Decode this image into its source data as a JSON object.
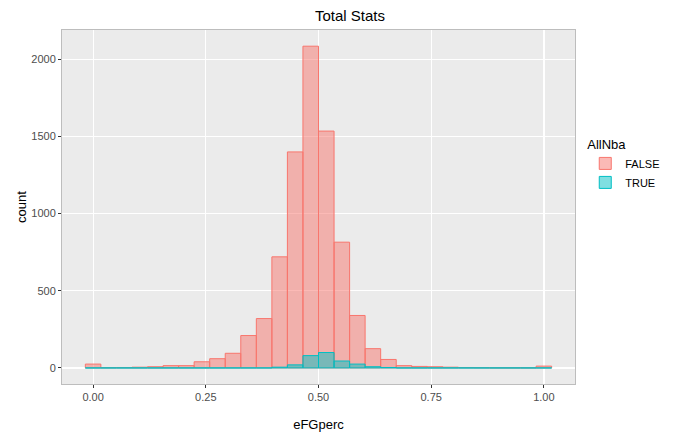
{
  "chart_data": {
    "type": "histogram",
    "title": "Total Stats",
    "x_label": "eFGperc",
    "y_label": "count",
    "legend_title": "AllNba",
    "legend": "right",
    "grid": true,
    "bins": [
      -0.0172,
      0.0172,
      0.0517,
      0.0862,
      0.1207,
      0.1552,
      0.1897,
      0.2241,
      0.2586,
      0.2931,
      0.3276,
      0.3621,
      0.3966,
      0.431,
      0.4655,
      0.5,
      0.5345,
      0.569,
      0.6034,
      0.6379,
      0.6724,
      0.7069,
      0.7414,
      0.7759,
      0.8103,
      0.8448,
      0.8793,
      0.9138,
      0.9483,
      0.9828,
      1.0172
    ],
    "series": [
      {
        "name": "FALSE",
        "color": "#F8766D",
        "values": [
          25,
          2,
          3,
          5,
          8,
          15,
          15,
          40,
          60,
          95,
          210,
          320,
          720,
          1400,
          2085,
          1535,
          815,
          340,
          125,
          55,
          15,
          10,
          8,
          5,
          3,
          2,
          1,
          1,
          1,
          12
        ]
      },
      {
        "name": "TRUE",
        "color": "#00BFC4",
        "values": [
          0,
          0,
          0,
          0,
          0,
          0,
          0,
          0,
          0,
          0,
          0,
          0,
          5,
          20,
          80,
          100,
          45,
          25,
          8,
          3,
          0,
          0,
          0,
          0,
          0,
          0,
          0,
          0,
          0,
          0
        ]
      }
    ],
    "xlim": [
      -0.069,
      1.069
    ],
    "xticks": [
      {
        "value": 0,
        "label": "0.00"
      },
      {
        "value": 0.25,
        "label": "0.25"
      },
      {
        "value": 0.5,
        "label": "0.50"
      },
      {
        "value": 0.75,
        "label": "0.75"
      },
      {
        "value": 1,
        "label": "1.00"
      }
    ],
    "ylim": [
      -104,
      2190
    ],
    "yticks": [
      0,
      500,
      1000,
      1500,
      2000
    ]
  }
}
